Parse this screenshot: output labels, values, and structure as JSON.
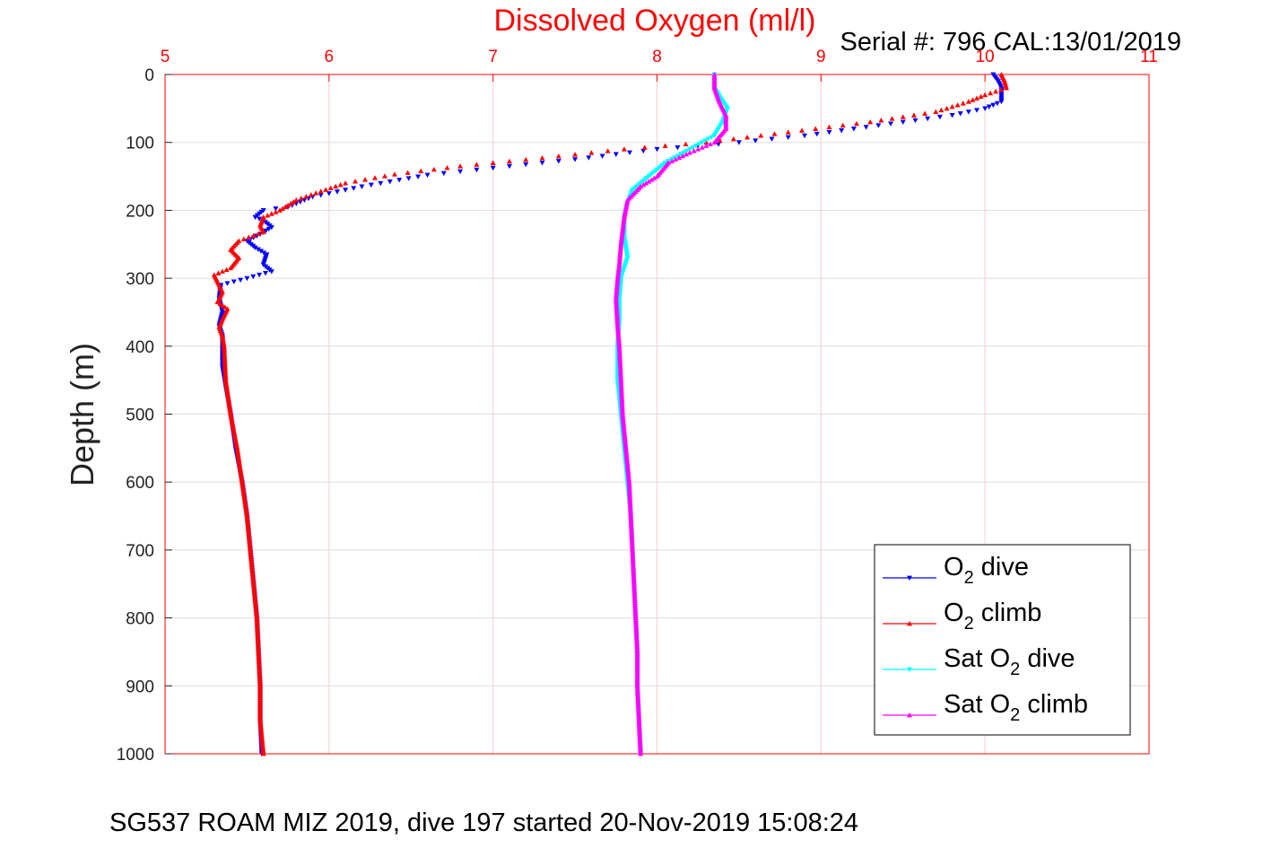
{
  "chart_data": {
    "type": "scatter",
    "title": "Dissolved Oxygen (ml/l)",
    "subtitle": "Serial #: 796  CAL:13/01/2019",
    "footer": "SG537 ROAM MIZ 2019, dive 197 started 20-Nov-2019 15:08:24",
    "xlabel": "",
    "ylabel": "Depth (m)",
    "xlim": [
      5,
      11
    ],
    "ylim": [
      0,
      1000
    ],
    "y_reversed": true,
    "x_axis_position": "top",
    "x_ticks": [
      5,
      6,
      7,
      8,
      9,
      10,
      11
    ],
    "y_ticks": [
      0,
      100,
      200,
      300,
      400,
      500,
      600,
      700,
      800,
      900,
      1000
    ],
    "grid": true,
    "legend_position": "bottom-right",
    "series": [
      {
        "name": "O₂ dive",
        "legend_base": "O",
        "legend_sub": "2",
        "legend_post": " dive",
        "color": "#0000ff",
        "marker": "triangle-down",
        "points": [
          [
            10.05,
            0
          ],
          [
            10.08,
            10
          ],
          [
            10.1,
            20
          ],
          [
            10.1,
            30
          ],
          [
            10.1,
            40
          ],
          [
            10.0,
            50
          ],
          [
            9.8,
            60
          ],
          [
            9.5,
            70
          ],
          [
            9.2,
            80
          ],
          [
            8.9,
            90
          ],
          [
            8.5,
            100
          ],
          [
            8.0,
            110
          ],
          [
            7.5,
            125
          ],
          [
            7.1,
            135
          ],
          [
            6.6,
            148
          ],
          [
            6.2,
            165
          ],
          [
            5.9,
            180
          ],
          [
            5.75,
            195
          ],
          [
            5.6,
            200
          ],
          [
            5.55,
            210
          ],
          [
            5.6,
            215
          ],
          [
            5.65,
            225
          ],
          [
            5.58,
            235
          ],
          [
            5.5,
            245
          ],
          [
            5.55,
            255
          ],
          [
            5.62,
            265
          ],
          [
            5.6,
            280
          ],
          [
            5.65,
            290
          ],
          [
            5.5,
            300
          ],
          [
            5.34,
            310
          ],
          [
            5.33,
            330
          ],
          [
            5.35,
            350
          ],
          [
            5.33,
            370
          ],
          [
            5.35,
            385
          ],
          [
            5.35,
            400
          ],
          [
            5.35,
            430
          ],
          [
            5.37,
            460
          ],
          [
            5.4,
            500
          ],
          [
            5.43,
            550
          ],
          [
            5.47,
            600
          ],
          [
            5.5,
            650
          ],
          [
            5.52,
            700
          ],
          [
            5.54,
            750
          ],
          [
            5.56,
            800
          ],
          [
            5.57,
            850
          ],
          [
            5.58,
            900
          ],
          [
            5.58,
            950
          ],
          [
            5.59,
            1000
          ]
        ]
      },
      {
        "name": "O₂ climb",
        "legend_base": "O",
        "legend_sub": "2",
        "legend_post": " climb",
        "color": "#ff0000",
        "marker": "triangle-up",
        "points": [
          [
            10.1,
            0
          ],
          [
            10.12,
            10
          ],
          [
            10.13,
            20
          ],
          [
            10.0,
            30
          ],
          [
            9.9,
            40
          ],
          [
            9.7,
            55
          ],
          [
            9.3,
            70
          ],
          [
            8.8,
            85
          ],
          [
            8.3,
            100
          ],
          [
            7.8,
            110
          ],
          [
            7.3,
            123
          ],
          [
            6.8,
            135
          ],
          [
            6.4,
            147
          ],
          [
            6.1,
            160
          ],
          [
            5.95,
            172
          ],
          [
            5.8,
            185
          ],
          [
            5.7,
            200
          ],
          [
            5.6,
            210
          ],
          [
            5.58,
            222
          ],
          [
            5.6,
            232
          ],
          [
            5.45,
            245
          ],
          [
            5.4,
            258
          ],
          [
            5.45,
            270
          ],
          [
            5.4,
            285
          ],
          [
            5.3,
            295
          ],
          [
            5.33,
            310
          ],
          [
            5.35,
            320
          ],
          [
            5.32,
            335
          ],
          [
            5.38,
            345
          ],
          [
            5.35,
            360
          ],
          [
            5.33,
            372
          ],
          [
            5.35,
            385
          ],
          [
            5.36,
            400
          ],
          [
            5.37,
            450
          ],
          [
            5.4,
            500
          ],
          [
            5.44,
            550
          ],
          [
            5.47,
            600
          ],
          [
            5.5,
            650
          ],
          [
            5.52,
            700
          ],
          [
            5.54,
            750
          ],
          [
            5.56,
            800
          ],
          [
            5.57,
            850
          ],
          [
            5.58,
            900
          ],
          [
            5.58,
            950
          ],
          [
            5.6,
            1000
          ]
        ]
      },
      {
        "name": "Sat O₂ dive",
        "legend_base": "Sat O",
        "legend_sub": "2",
        "legend_post": " dive",
        "color": "#00ffff",
        "marker": "triangle-down",
        "points": [
          [
            8.35,
            0
          ],
          [
            8.35,
            20
          ],
          [
            8.4,
            40
          ],
          [
            8.43,
            50
          ],
          [
            8.4,
            70
          ],
          [
            8.35,
            90
          ],
          [
            8.2,
            110
          ],
          [
            8.05,
            130
          ],
          [
            7.95,
            150
          ],
          [
            7.85,
            170
          ],
          [
            7.82,
            190
          ],
          [
            7.8,
            210
          ],
          [
            7.8,
            240
          ],
          [
            7.82,
            270
          ],
          [
            7.78,
            300
          ],
          [
            7.77,
            330
          ],
          [
            7.77,
            360
          ],
          [
            7.76,
            400
          ],
          [
            7.76,
            450
          ],
          [
            7.78,
            500
          ],
          [
            7.8,
            550
          ],
          [
            7.82,
            600
          ],
          [
            7.84,
            650
          ],
          [
            7.85,
            700
          ],
          [
            7.86,
            750
          ],
          [
            7.87,
            800
          ],
          [
            7.88,
            850
          ],
          [
            7.88,
            900
          ],
          [
            7.89,
            950
          ],
          [
            7.9,
            1000
          ]
        ]
      },
      {
        "name": "Sat O₂ climb",
        "legend_base": "Sat O",
        "legend_sub": "2",
        "legend_post": " climb",
        "color": "#ff00ff",
        "marker": "triangle-up",
        "points": [
          [
            8.35,
            0
          ],
          [
            8.35,
            20
          ],
          [
            8.38,
            40
          ],
          [
            8.42,
            60
          ],
          [
            8.42,
            80
          ],
          [
            8.35,
            100
          ],
          [
            8.2,
            115
          ],
          [
            8.07,
            130
          ],
          [
            8.0,
            150
          ],
          [
            7.9,
            165
          ],
          [
            7.82,
            185
          ],
          [
            7.8,
            210
          ],
          [
            7.78,
            250
          ],
          [
            7.77,
            280
          ],
          [
            7.76,
            300
          ],
          [
            7.75,
            330
          ],
          [
            7.76,
            370
          ],
          [
            7.77,
            400
          ],
          [
            7.78,
            450
          ],
          [
            7.79,
            500
          ],
          [
            7.81,
            550
          ],
          [
            7.83,
            600
          ],
          [
            7.84,
            650
          ],
          [
            7.85,
            700
          ],
          [
            7.86,
            750
          ],
          [
            7.87,
            800
          ],
          [
            7.88,
            850
          ],
          [
            7.88,
            900
          ],
          [
            7.89,
            950
          ],
          [
            7.9,
            1000
          ]
        ]
      }
    ]
  }
}
